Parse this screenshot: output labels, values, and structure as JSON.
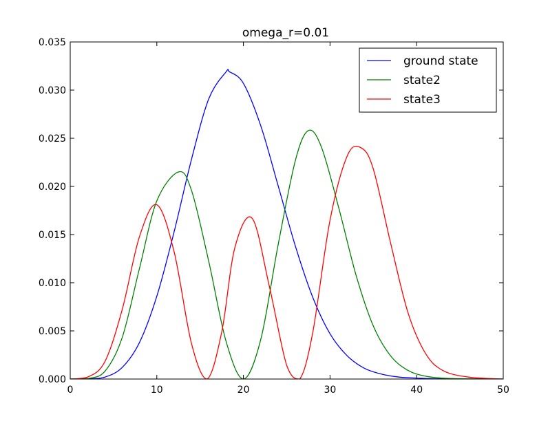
{
  "chart_data": {
    "type": "line",
    "title": "omega_r=0.01",
    "xlabel": "",
    "ylabel": "",
    "xlim": [
      0,
      50
    ],
    "ylim": [
      0,
      0.035
    ],
    "grid": false,
    "legend_position": "top-right",
    "x_ticks": [
      0,
      10,
      20,
      30,
      40,
      50
    ],
    "x_tick_labels": [
      "0",
      "10",
      "20",
      "30",
      "40",
      "50"
    ],
    "y_ticks": [
      0,
      0.005,
      0.01,
      0.015,
      0.02,
      0.025,
      0.03,
      0.035
    ],
    "y_tick_labels": [
      "0.000",
      "0.005",
      "0.010",
      "0.015",
      "0.020",
      "0.025",
      "0.030",
      "0.035"
    ],
    "series": [
      {
        "name": "ground state",
        "color": "#0000ff",
        "x": [
          0,
          2,
          4,
          6,
          8,
          10,
          12,
          14,
          16,
          18,
          18.4,
          20,
          22,
          24,
          26,
          28,
          30,
          32,
          34,
          36,
          38,
          40,
          42,
          45,
          50
        ],
        "y": [
          0,
          2e-05,
          0.0002,
          0.0012,
          0.0038,
          0.0086,
          0.0153,
          0.0228,
          0.0291,
          0.0319,
          0.0319,
          0.0307,
          0.0263,
          0.0201,
          0.0138,
          0.0085,
          0.0047,
          0.0024,
          0.0011,
          0.0005,
          0.0002,
          0.0001,
          3e-05,
          1e-05,
          0
        ]
      },
      {
        "name": "state2",
        "color": "#008000",
        "x": [
          0,
          2,
          4,
          6,
          8,
          10,
          12.5,
          14,
          16,
          18,
          20,
          22,
          24,
          26,
          27.5,
          29,
          31,
          33,
          35,
          37,
          39,
          41,
          43,
          46,
          50
        ],
        "y": [
          0,
          5e-05,
          0.0008,
          0.0043,
          0.0115,
          0.0185,
          0.0215,
          0.0196,
          0.0122,
          0.0039,
          0.0,
          0.0041,
          0.0139,
          0.0227,
          0.0258,
          0.0241,
          0.0178,
          0.0108,
          0.0055,
          0.0024,
          0.0009,
          0.0003,
          0.0001,
          2e-05,
          0
        ]
      },
      {
        "name": "state3",
        "color": "#ff0000",
        "x": [
          0,
          2,
          4,
          6,
          8,
          10,
          12,
          14,
          15.8,
          17.5,
          19,
          21,
          23,
          25,
          26.5,
          28,
          30,
          32,
          33.6,
          35,
          37,
          39,
          41,
          43,
          46,
          50
        ],
        "y": [
          0,
          0.0002,
          0.0018,
          0.0072,
          0.0148,
          0.0181,
          0.0132,
          0.0037,
          0.0,
          0.0049,
          0.0136,
          0.0167,
          0.0096,
          0.0014,
          0.0,
          0.0048,
          0.0165,
          0.0232,
          0.024,
          0.0218,
          0.0141,
          0.0069,
          0.0027,
          0.0009,
          0.0002,
          0
        ]
      }
    ]
  }
}
